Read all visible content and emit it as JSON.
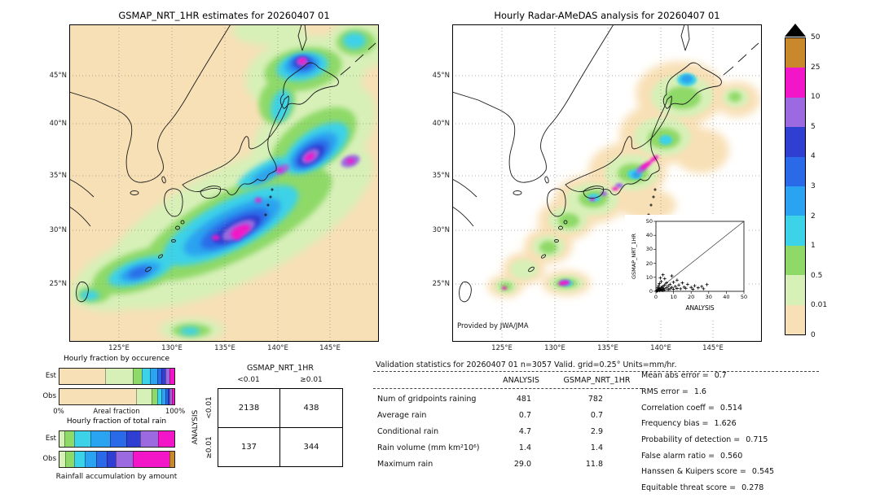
{
  "left_map": {
    "title": "GSMAP_NRT_1HR estimates for 20260407 01"
  },
  "right_map": {
    "title": "Hourly Radar-AMeDAS analysis for 20260407 01",
    "credit": "Provided by JWA/JMA"
  },
  "map_axes": {
    "lat_ticks": [
      "45°N",
      "40°N",
      "35°N",
      "30°N",
      "25°N"
    ],
    "lon_ticks": [
      "125°E",
      "130°E",
      "135°E",
      "140°E",
      "145°E"
    ]
  },
  "colorbar": {
    "units": "mm/hr",
    "labels_top_to_bottom": [
      "50",
      "25",
      "10",
      "5",
      "4",
      "3",
      "2",
      "1",
      "0.5",
      "0.01",
      "0"
    ],
    "colors_top_to_bottom": [
      "#c8882b",
      "#f315c8",
      "#9b6ae0",
      "#2e3fd2",
      "#2a6ae8",
      "#2aa3f0",
      "#3cd2e8",
      "#8ed968",
      "#d7f0b8",
      "#f8e0b6"
    ],
    "overflow_marker_color": "#000000"
  },
  "inset_scatter": {
    "ylabel": "GSMAP_NRT_1HR",
    "xlabel": "ANALYSIS",
    "ticks": [
      "0",
      "10",
      "20",
      "30",
      "40",
      "50"
    ]
  },
  "fraction_charts": {
    "occurrence": {
      "title": "Hourly fraction by occurence",
      "row_labels": [
        "Est",
        "Obs"
      ],
      "axis_left": "0%",
      "axis_center": "Areal fraction",
      "axis_right": "100%",
      "est_segments": [
        {
          "color": "#f8e0b6",
          "pct": 40
        },
        {
          "color": "#d7f0b8",
          "pct": 24
        },
        {
          "color": "#8ed968",
          "pct": 8
        },
        {
          "color": "#3cd2e8",
          "pct": 7
        },
        {
          "color": "#2aa3f0",
          "pct": 6
        },
        {
          "color": "#2a6ae8",
          "pct": 4
        },
        {
          "color": "#2e3fd2",
          "pct": 3
        },
        {
          "color": "#9b6ae0",
          "pct": 4
        },
        {
          "color": "#f315c8",
          "pct": 4
        }
      ],
      "obs_segments": [
        {
          "color": "#f8e0b6",
          "pct": 67
        },
        {
          "color": "#d7f0b8",
          "pct": 13
        },
        {
          "color": "#8ed968",
          "pct": 5
        },
        {
          "color": "#3cd2e8",
          "pct": 4
        },
        {
          "color": "#2aa3f0",
          "pct": 3
        },
        {
          "color": "#2a6ae8",
          "pct": 2
        },
        {
          "color": "#2e3fd2",
          "pct": 2
        },
        {
          "color": "#9b6ae0",
          "pct": 2
        },
        {
          "color": "#f315c8",
          "pct": 2
        }
      ]
    },
    "total_rain": {
      "title": "Hourly fraction of total rain",
      "row_labels": [
        "Est",
        "Obs"
      ],
      "caption": "Rainfall accumulation by amount",
      "est_segments": [
        {
          "color": "#d7f0b8",
          "pct": 4
        },
        {
          "color": "#8ed968",
          "pct": 9
        },
        {
          "color": "#3cd2e8",
          "pct": 14
        },
        {
          "color": "#2aa3f0",
          "pct": 17
        },
        {
          "color": "#2a6ae8",
          "pct": 14
        },
        {
          "color": "#2e3fd2",
          "pct": 12
        },
        {
          "color": "#9b6ae0",
          "pct": 16
        },
        {
          "color": "#f315c8",
          "pct": 14
        }
      ],
      "obs_segments": [
        {
          "color": "#d7f0b8",
          "pct": 5
        },
        {
          "color": "#8ed968",
          "pct": 8
        },
        {
          "color": "#3cd2e8",
          "pct": 9
        },
        {
          "color": "#2aa3f0",
          "pct": 10
        },
        {
          "color": "#2a6ae8",
          "pct": 9
        },
        {
          "color": "#2e3fd2",
          "pct": 8
        },
        {
          "color": "#9b6ae0",
          "pct": 15
        },
        {
          "color": "#f315c8",
          "pct": 32
        },
        {
          "color": "#c8882b",
          "pct": 4
        }
      ]
    }
  },
  "contingency": {
    "col_group_label": "GSMAP_NRT_1HR",
    "row_group_label": "ANALYSIS",
    "col_labels": [
      "<0.01",
      "≥0.01"
    ],
    "row_labels": [
      "<0.01",
      "≥0.01"
    ],
    "cells": [
      [
        "2138",
        "438"
      ],
      [
        "137",
        "344"
      ]
    ]
  },
  "stats": {
    "title": "Validation statistics for 20260407 01  n=3057 Valid. grid=0.25° Units=mm/hr.",
    "col_headers": [
      "ANALYSIS",
      "GSMAP_NRT_1HR"
    ],
    "rows": [
      {
        "label": "Num of gridpoints raining",
        "analysis": "481",
        "gsmap": "782"
      },
      {
        "label": "Average rain",
        "analysis": "0.7",
        "gsmap": "0.7"
      },
      {
        "label": "Conditional rain",
        "analysis": "4.7",
        "gsmap": "2.9"
      },
      {
        "label": "Rain volume (mm km²10⁶)",
        "analysis": "1.4",
        "gsmap": "1.4"
      },
      {
        "label": "Maximum rain",
        "analysis": "29.0",
        "gsmap": "11.8"
      }
    ],
    "metrics": [
      {
        "label": "Mean abs error =",
        "value": "0.7"
      },
      {
        "label": "RMS error =",
        "value": "1.6"
      },
      {
        "label": "Correlation coeff =",
        "value": "0.514"
      },
      {
        "label": "Frequency bias =",
        "value": "1.626"
      },
      {
        "label": "Probability of detection =",
        "value": "0.715"
      },
      {
        "label": "False alarm ratio =",
        "value": "0.560"
      },
      {
        "label": "Hanssen & Kuipers score =",
        "value": "0.545"
      },
      {
        "label": "Equitable threat score =",
        "value": "0.278"
      }
    ]
  },
  "chart_data": [
    {
      "type": "heatmap",
      "title": "GSMAP_NRT_1HR estimates for 20260407 01",
      "x_ticks": [
        "125°E",
        "130°E",
        "135°E",
        "140°E",
        "145°E"
      ],
      "y_ticks": [
        "25°N",
        "30°N",
        "35°N",
        "40°N",
        "45°N"
      ],
      "colorbar_levels_mm_per_hr": [
        0,
        0.01,
        0.5,
        1,
        2,
        3,
        4,
        5,
        10,
        25,
        50
      ],
      "max_value": 11.8,
      "description": "Broad SW-NE rain band south of Honshu with 10-25 mm/hr magenta cores near 30N/137E and 36N/143E; secondary rain over Hokkaido and the Okinawa island chain."
    },
    {
      "type": "heatmap",
      "title": "Hourly Radar-AMeDAS analysis for 20260407 01",
      "x_ticks": [
        "125°E",
        "130°E",
        "135°E",
        "140°E",
        "145°E"
      ],
      "y_ticks": [
        "25°N",
        "30°N",
        "35°N",
        "40°N",
        "45°N"
      ],
      "colorbar_levels_mm_per_hr": [
        0,
        0.01,
        0.5,
        1,
        2,
        3,
        4,
        5,
        10,
        25,
        50
      ],
      "max_value": 29.0,
      "description": "Radar coverage band along the Japanese archipelago; light-to-moderate rain along the Pacific coast with intense magenta streaks off Tokai/Kanto and near Okinawa."
    },
    {
      "type": "scatter",
      "xlabel": "ANALYSIS",
      "ylabel": "GSMAP_NRT_1HR",
      "xlim": [
        0,
        50
      ],
      "ylim": [
        0,
        50
      ],
      "one_to_one_line": true,
      "points": [
        [
          0.3,
          0.2
        ],
        [
          0.5,
          0.5
        ],
        [
          0.8,
          0.3
        ],
        [
          1,
          1
        ],
        [
          1,
          2.5
        ],
        [
          1.2,
          0.6
        ],
        [
          1.5,
          1.8
        ],
        [
          1.5,
          4
        ],
        [
          2,
          0.5
        ],
        [
          2,
          2
        ],
        [
          2,
          5.5
        ],
        [
          2.5,
          1.2
        ],
        [
          3,
          0.8
        ],
        [
          3,
          2.8
        ],
        [
          3,
          7
        ],
        [
          3.5,
          1.5
        ],
        [
          4,
          3.5
        ],
        [
          4,
          0.6
        ],
        [
          4.5,
          2
        ],
        [
          5,
          1
        ],
        [
          5,
          4.5
        ],
        [
          5,
          9
        ],
        [
          6,
          2.5
        ],
        [
          6,
          6
        ],
        [
          7,
          1.2
        ],
        [
          7,
          3.8
        ],
        [
          8,
          5
        ],
        [
          8,
          1.8
        ],
        [
          9,
          2.8
        ],
        [
          9,
          11
        ],
        [
          10,
          1.5
        ],
        [
          10,
          6.5
        ],
        [
          11,
          3.5
        ],
        [
          12,
          2
        ],
        [
          12,
          8
        ],
        [
          13,
          4.5
        ],
        [
          14,
          1.8
        ],
        [
          15,
          6
        ],
        [
          16,
          3
        ],
        [
          17,
          2.2
        ],
        [
          18,
          5
        ],
        [
          20,
          2.8
        ],
        [
          21,
          1.5
        ],
        [
          22,
          4
        ],
        [
          24,
          2.5
        ],
        [
          26,
          3.5
        ],
        [
          27,
          1.8
        ],
        [
          29,
          4.8
        ],
        [
          4,
          11.8
        ],
        [
          2.5,
          9.5
        ]
      ]
    },
    {
      "type": "bar",
      "subtype": "stacked-horizontal",
      "title": "Hourly fraction by occurence",
      "categories": [
        "Est",
        "Obs"
      ],
      "bins": [
        "0",
        "0.01-0.5",
        "0.5-1",
        "1-2",
        "2-3",
        "3-4",
        "4-5",
        "5-10",
        "10-25"
      ],
      "series": [
        {
          "name": "Est",
          "values": [
            40,
            24,
            8,
            7,
            6,
            4,
            3,
            4,
            4
          ]
        },
        {
          "name": "Obs",
          "values": [
            67,
            13,
            5,
            4,
            3,
            2,
            2,
            2,
            2
          ]
        }
      ],
      "xlabel": "Areal fraction",
      "xlim_pct": [
        0,
        100
      ]
    },
    {
      "type": "bar",
      "subtype": "stacked-horizontal",
      "title": "Hourly fraction of total rain",
      "categories": [
        "Est",
        "Obs"
      ],
      "bins": [
        "0.01-0.5",
        "0.5-1",
        "1-2",
        "2-3",
        "3-4",
        "4-5",
        "5-10",
        "10-25",
        "25-50"
      ],
      "series": [
        {
          "name": "Est",
          "values": [
            4,
            9,
            14,
            17,
            14,
            12,
            16,
            14,
            0
          ]
        },
        {
          "name": "Obs",
          "values": [
            5,
            8,
            9,
            10,
            9,
            8,
            15,
            32,
            4
          ]
        }
      ],
      "xlabel": "Rainfall accumulation by amount",
      "xlim_pct": [
        0,
        100
      ]
    },
    {
      "type": "table",
      "title": "Contingency table (gridpoint counts)",
      "row_axis": "ANALYSIS",
      "col_axis": "GSMAP_NRT_1HR",
      "col_labels": [
        "<0.01",
        "≥0.01"
      ],
      "row_labels": [
        "<0.01",
        "≥0.01"
      ],
      "values": [
        [
          2138,
          438
        ],
        [
          137,
          344
        ]
      ]
    },
    {
      "type": "table",
      "title": "Validation statistics for 20260407 01",
      "n": 3057,
      "grid_deg": 0.25,
      "units": "mm/hr",
      "columns": [
        "ANALYSIS",
        "GSMAP_NRT_1HR"
      ],
      "rows": [
        [
          "Num of gridpoints raining",
          481,
          782
        ],
        [
          "Average rain",
          0.7,
          0.7
        ],
        [
          "Conditional rain",
          4.7,
          2.9
        ],
        [
          "Rain volume (mm km²10⁶)",
          1.4,
          1.4
        ],
        [
          "Maximum rain",
          29.0,
          11.8
        ]
      ],
      "scores": {
        "mean_abs_error": 0.7,
        "rms_error": 1.6,
        "correlation_coeff": 0.514,
        "frequency_bias": 1.626,
        "probability_of_detection": 0.715,
        "false_alarm_ratio": 0.56,
        "hanssen_kuipers_score": 0.545,
        "equitable_threat_score": 0.278
      }
    }
  ]
}
